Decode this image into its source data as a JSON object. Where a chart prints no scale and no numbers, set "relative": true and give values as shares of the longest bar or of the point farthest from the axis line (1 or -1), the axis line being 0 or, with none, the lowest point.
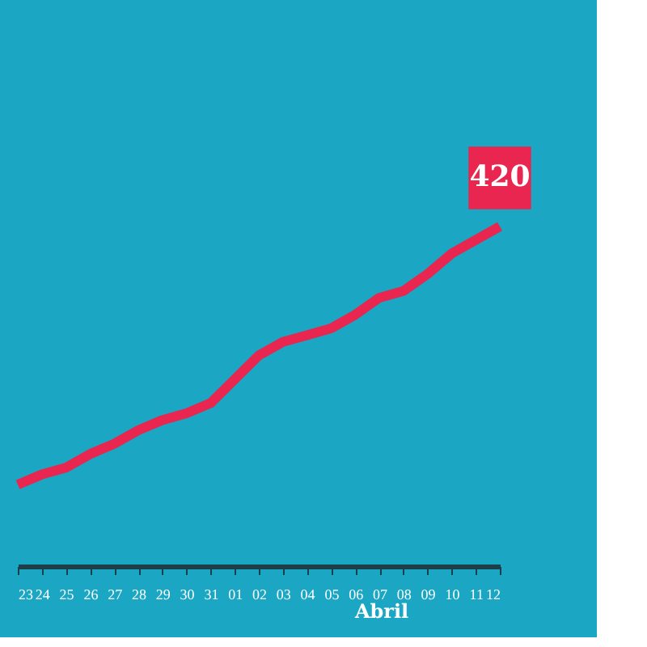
{
  "chart_data": {
    "type": "line",
    "relative": true,
    "categories": [
      "23",
      "24",
      "25",
      "26",
      "27",
      "28",
      "29",
      "30",
      "31",
      "01",
      "02",
      "03",
      "04",
      "05",
      "06",
      "07",
      "08",
      "09",
      "10",
      "11",
      "12"
    ],
    "series": [
      {
        "color": "#e8264f",
        "values": [
          0.24,
          0.27,
          0.29,
          0.33,
          0.36,
          0.4,
          0.43,
          0.45,
          0.48,
          0.55,
          0.62,
          0.66,
          0.68,
          0.7,
          0.74,
          0.79,
          0.81,
          0.86,
          0.92,
          0.96,
          1.0
        ]
      }
    ],
    "annotations": [
      "420",
      "Abril"
    ],
    "marker": "none",
    "line_style": "solid"
  }
}
